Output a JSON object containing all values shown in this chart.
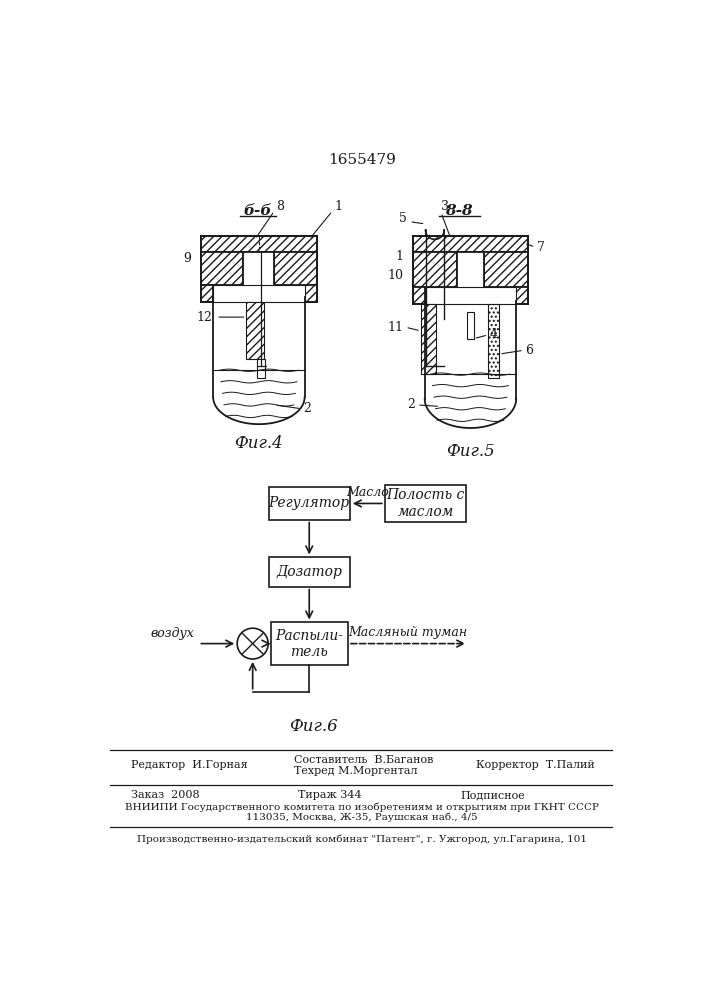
{
  "patent_number": "1655479",
  "fig4_label": "Фиг.4",
  "fig5_label": "Фиг.5",
  "fig6_label": "Фиг.6",
  "section_b_b": "б-б",
  "section_v_v": "8-8",
  "block_regulator": "Регулятор",
  "block_dozator": "Дозатор",
  "block_raspylitel": "Распыли-\nтель",
  "block_polost": "Полость с\nмаслом",
  "label_maslo": "Масло",
  "label_vozduh": "воздух",
  "label_maslyany_tuman": "Масляный туман",
  "editor_label": "Редактор  И.Горная",
  "compiler_label": "Составитель  В.Баганов",
  "techred_label": "Техред М.Моргентал",
  "corrector_label": "Корректор  Т.Палий",
  "order_label": "Заказ  2008",
  "tirazh_label": "Тираж 344",
  "podpisnoe_label": "Подписное",
  "vniiipi_line1": "ВНИИПИ Государственного комитета по изобретениям и открытиям при ГКНТ СССР",
  "vniiipi_line2": "113035, Москва, Ж-35, Раушская наб., 4/5",
  "factory_line": "Производственно-издательский комбинат \"Патент\", г. Ужгород, ул.Гагарина, 101",
  "bg_color": "#ffffff",
  "line_color": "#1a1a1a"
}
